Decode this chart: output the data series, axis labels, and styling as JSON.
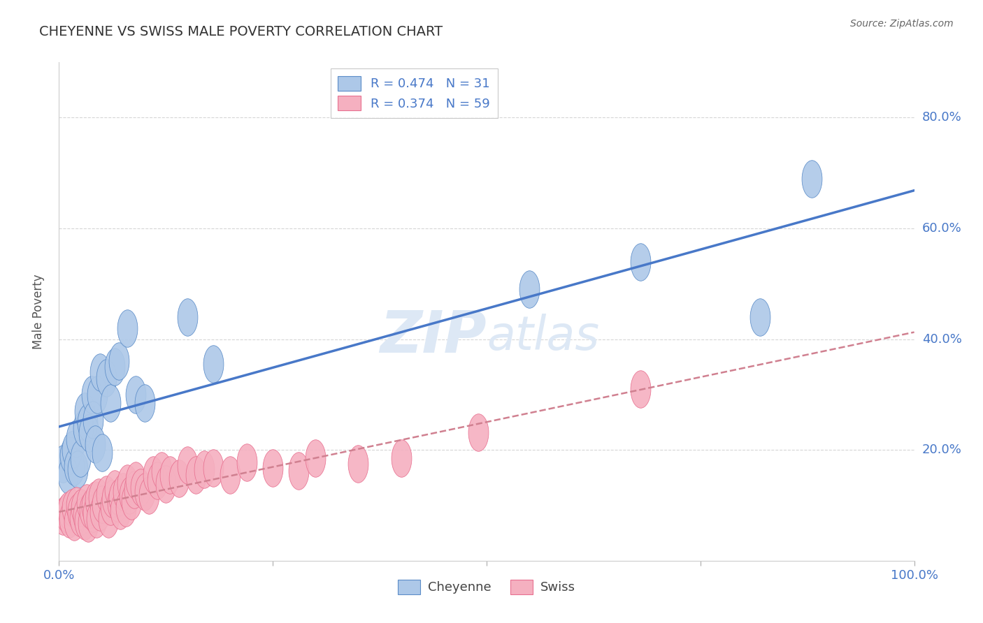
{
  "title": "CHEYENNE VS SWISS MALE POVERTY CORRELATION CHART",
  "source": "Source: ZipAtlas.com",
  "ylabel": "Male Poverty",
  "right_ytick_labels": [
    "20.0%",
    "40.0%",
    "60.0%",
    "80.0%"
  ],
  "right_ytick_values": [
    0.2,
    0.4,
    0.6,
    0.8
  ],
  "cheyenne_R": 0.474,
  "cheyenne_N": 31,
  "swiss_R": 0.374,
  "swiss_N": 59,
  "legend_label_cheyenne": "Cheyenne",
  "legend_label_swiss": "Swiss",
  "cheyenne_color": "#adc8e8",
  "cheyenne_edge_color": "#5b8cc8",
  "cheyenne_line_color": "#4878c8",
  "swiss_color": "#f5b0c0",
  "swiss_edge_color": "#e87090",
  "swiss_line_color": "#e87090",
  "background_color": "#ffffff",
  "grid_color": "#cccccc",
  "title_color": "#333333",
  "axis_label_color": "#555555",
  "tick_color": "#4878c8",
  "source_color": "#666666",
  "watermark_color": "#dde8f5",
  "cheyenne_x": [
    0.005,
    0.01,
    0.013,
    0.015,
    0.018,
    0.02,
    0.022,
    0.025,
    0.028,
    0.03,
    0.033,
    0.035,
    0.038,
    0.04,
    0.042,
    0.045,
    0.048,
    0.05,
    0.055,
    0.06,
    0.065,
    0.07,
    0.08,
    0.09,
    0.1,
    0.15,
    0.18,
    0.55,
    0.68,
    0.82,
    0.88
  ],
  "cheyenne_y": [
    0.175,
    0.155,
    0.19,
    0.2,
    0.17,
    0.22,
    0.165,
    0.185,
    0.24,
    0.27,
    0.25,
    0.23,
    0.3,
    0.255,
    0.21,
    0.3,
    0.34,
    0.195,
    0.33,
    0.285,
    0.35,
    0.36,
    0.42,
    0.3,
    0.285,
    0.44,
    0.355,
    0.49,
    0.54,
    0.44,
    0.69
  ],
  "swiss_x": [
    0.005,
    0.008,
    0.01,
    0.012,
    0.015,
    0.018,
    0.02,
    0.022,
    0.024,
    0.026,
    0.028,
    0.03,
    0.032,
    0.034,
    0.036,
    0.038,
    0.04,
    0.042,
    0.044,
    0.046,
    0.048,
    0.05,
    0.055,
    0.058,
    0.06,
    0.062,
    0.065,
    0.068,
    0.07,
    0.072,
    0.075,
    0.078,
    0.08,
    0.082,
    0.085,
    0.088,
    0.09,
    0.095,
    0.1,
    0.105,
    0.11,
    0.115,
    0.12,
    0.125,
    0.13,
    0.14,
    0.15,
    0.16,
    0.17,
    0.18,
    0.2,
    0.22,
    0.25,
    0.28,
    0.3,
    0.35,
    0.4,
    0.49,
    0.68
  ],
  "swiss_y": [
    0.08,
    0.085,
    0.09,
    0.075,
    0.095,
    0.07,
    0.1,
    0.088,
    0.078,
    0.095,
    0.082,
    0.072,
    0.105,
    0.068,
    0.092,
    0.098,
    0.085,
    0.11,
    0.075,
    0.115,
    0.088,
    0.102,
    0.12,
    0.075,
    0.098,
    0.112,
    0.13,
    0.105,
    0.115,
    0.09,
    0.125,
    0.095,
    0.14,
    0.118,
    0.108,
    0.128,
    0.145,
    0.132,
    0.125,
    0.118,
    0.155,
    0.145,
    0.162,
    0.138,
    0.155,
    0.148,
    0.172,
    0.155,
    0.165,
    0.168,
    0.155,
    0.178,
    0.168,
    0.162,
    0.185,
    0.175,
    0.185,
    0.232,
    0.31
  ],
  "xlim": [
    0.0,
    1.0
  ],
  "ylim": [
    0.0,
    0.9
  ]
}
